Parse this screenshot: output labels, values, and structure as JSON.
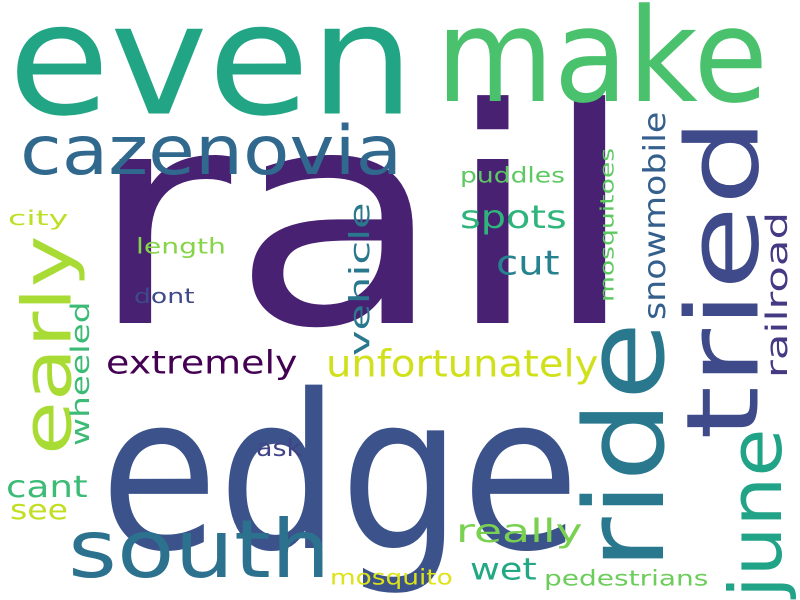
{
  "words": [
    {
      "text": "rail",
      "color": "#482172"
    },
    {
      "text": "edge",
      "color": "#3b528b"
    },
    {
      "text": "even",
      "color": "#21a585"
    },
    {
      "text": "make",
      "color": "#4ac16d"
    },
    {
      "text": "ride",
      "color": "#2a788e"
    },
    {
      "text": "tried",
      "color": "#3e4a89"
    },
    {
      "text": "south",
      "color": "#2c728e"
    },
    {
      "text": "cazenovia",
      "color": "#31688e"
    },
    {
      "text": "june",
      "color": "#20a386"
    },
    {
      "text": "early",
      "color": "#a8db34"
    },
    {
      "text": "unfortunately",
      "color": "#d0e11c"
    },
    {
      "text": "extremely",
      "color": "#440154"
    },
    {
      "text": "spots",
      "color": "#2fb47c"
    },
    {
      "text": "cut",
      "color": "#26828e"
    },
    {
      "text": "vehicle",
      "color": "#2a788e"
    },
    {
      "text": "snowmobile",
      "color": "#355f8d"
    },
    {
      "text": "railroad",
      "color": "#443983"
    },
    {
      "text": "wheeled",
      "color": "#3bbb75"
    },
    {
      "text": "really",
      "color": "#7ad151"
    },
    {
      "text": "wet",
      "color": "#22a884"
    },
    {
      "text": "cant",
      "color": "#3bbb75"
    },
    {
      "text": "see",
      "color": "#c2df23"
    },
    {
      "text": "ask",
      "color": "#414487"
    },
    {
      "text": "mosquitoes",
      "color": "#5ec962"
    },
    {
      "text": "puddles",
      "color": "#5ec962"
    },
    {
      "text": "length",
      "color": "#86d549"
    },
    {
      "text": "dont",
      "color": "#3e4a89"
    },
    {
      "text": "city",
      "color": "#bddf26"
    },
    {
      "text": "mosquito",
      "color": "#dde318"
    },
    {
      "text": "pedestrians",
      "color": "#6ccd5a"
    }
  ]
}
